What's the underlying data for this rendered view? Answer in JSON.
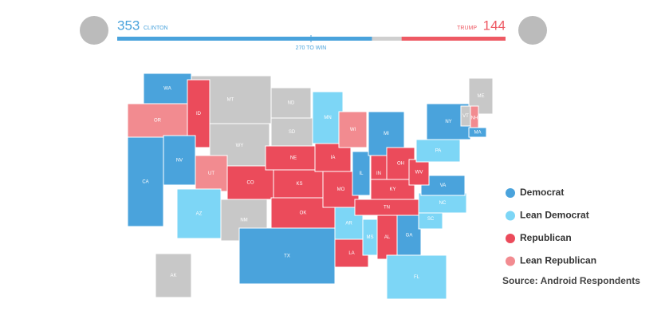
{
  "header": {
    "left": {
      "votes": 353,
      "name": "CLINTON",
      "color": "#4aa3dc"
    },
    "right": {
      "votes": 144,
      "name": "TRUMP",
      "color": "#ee5a64"
    },
    "threshold": "270 TO WIN"
  },
  "legend": [
    {
      "label": "Democrat",
      "color": "#4aa3dc"
    },
    {
      "label": "Lean Democrat",
      "color": "#7dd6f6"
    },
    {
      "label": "Republican",
      "color": "#eb4b5b"
    },
    {
      "label": "Lean Republican",
      "color": "#f28b90"
    }
  ],
  "source": "Source: Android Respondents",
  "states": [
    {
      "label": "MT",
      "category": null
    },
    {
      "label": "WA",
      "category": 0
    },
    {
      "label": "OR",
      "category": 3
    },
    {
      "label": "ID",
      "category": 2
    },
    {
      "label": "CA",
      "category": 0
    },
    {
      "label": "NV",
      "category": 0
    },
    {
      "label": "WY",
      "category": null
    },
    {
      "label": "UT",
      "category": 3
    },
    {
      "label": "AZ",
      "category": 1
    },
    {
      "label": "CO",
      "category": 2
    },
    {
      "label": "NM",
      "category": null
    },
    {
      "label": "ND",
      "category": null
    },
    {
      "label": "SD",
      "category": null
    },
    {
      "label": "NE",
      "category": 2
    },
    {
      "label": "KS",
      "category": 2
    },
    {
      "label": "OK",
      "category": 2
    },
    {
      "label": "TX",
      "category": 0
    },
    {
      "label": "MN",
      "category": 1
    },
    {
      "label": "IA",
      "category": 2
    },
    {
      "label": "MO",
      "category": 2
    },
    {
      "label": "AR",
      "category": 1
    },
    {
      "label": "LA",
      "category": 2
    },
    {
      "label": "WI",
      "category": 3
    },
    {
      "label": "IL",
      "category": 0
    },
    {
      "label": "MS",
      "category": 1
    },
    {
      "label": "MI",
      "category": 0
    },
    {
      "label": "IN",
      "category": 2
    },
    {
      "label": "OH",
      "category": 2
    },
    {
      "label": "KY",
      "category": 2
    },
    {
      "label": "TN",
      "category": 2
    },
    {
      "label": "AL",
      "category": 2
    },
    {
      "label": "GA",
      "category": 0
    },
    {
      "label": "FL",
      "category": 1
    },
    {
      "label": "SC",
      "category": 1
    },
    {
      "label": "NC",
      "category": 1
    },
    {
      "label": "VA",
      "category": 0
    },
    {
      "label": "WV",
      "category": 2
    },
    {
      "label": "PA",
      "category": 1
    },
    {
      "label": "NY",
      "category": 0
    },
    {
      "label": "ME",
      "category": null
    },
    {
      "label": "VT",
      "category": null
    },
    {
      "label": "NH",
      "category": 3
    },
    {
      "label": "MA",
      "category": 0
    },
    {
      "label": "AK",
      "category": null
    }
  ]
}
